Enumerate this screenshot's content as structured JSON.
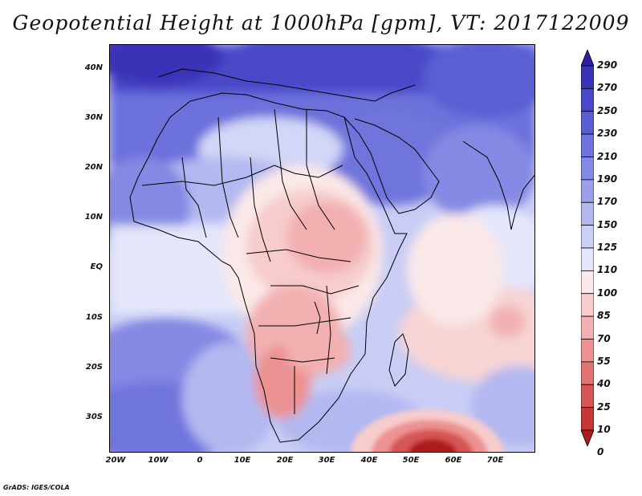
{
  "title": "Geopotential Height at 1000hPa [gpm], VT: 2017122009",
  "footer": "GrADS: IGES/COLA",
  "lat_labels": [
    "40N",
    "30N",
    "20N",
    "10N",
    "EQ",
    "10S",
    "20S",
    "30S"
  ],
  "lon_labels": [
    "20W",
    "10W",
    "0",
    "10E",
    "20E",
    "30E",
    "40E",
    "50E",
    "60E",
    "70E"
  ],
  "colorbar": {
    "levels": [
      "290",
      "270",
      "250",
      "230",
      "210",
      "190",
      "170",
      "150",
      "125",
      "110",
      "100",
      "85",
      "70",
      "55",
      "40",
      "25",
      "10",
      "0"
    ],
    "colors": [
      "#2f1fa0",
      "#3a33b8",
      "#4a48c8",
      "#5a5ed3",
      "#6f74dc",
      "#8489e3",
      "#9aa0ea",
      "#b3b8f0",
      "#ccd0f6",
      "#e4e6fa",
      "#fbe8e8",
      "#f7cccc",
      "#f2b0b0",
      "#ec9292",
      "#e27373",
      "#d65555",
      "#c53636",
      "#ad1a1a"
    ]
  },
  "field": {
    "description_levels": "gpm",
    "features": [
      "high heights over Mediterranean / Middle East",
      "low over southern Africa",
      "strong low south of Madagascar"
    ]
  }
}
